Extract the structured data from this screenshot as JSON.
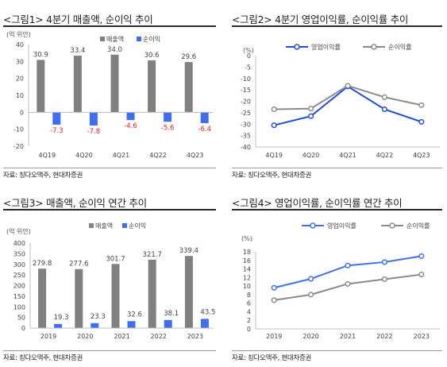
{
  "chart_data": [
    {
      "type": "bar",
      "title": "<그림1> 4분기 매출액, 순이익 추이",
      "unit_label": "(억 위안)",
      "categories": [
        "4Q19",
        "4Q20",
        "4Q21",
        "4Q22",
        "4Q23"
      ],
      "series": [
        {
          "name": "매출액",
          "values": [
            30.9,
            33.4,
            34.0,
            30.6,
            29.6
          ],
          "color": "#808080"
        },
        {
          "name": "순이익",
          "values": [
            -7.3,
            -7.8,
            -4.6,
            -5.6,
            -6.4
          ],
          "color": "#3f6ff0"
        }
      ],
      "value_labels": [
        [
          "30.9",
          "33.4",
          "34.0",
          "30.6",
          "29.6"
        ],
        [
          "-7.3",
          "-7.8",
          "-4.6",
          "-5.6",
          "-6.4"
        ]
      ],
      "negative_label_color": "#e8201c",
      "ylim": [
        -20,
        40
      ],
      "yticks": [
        -20,
        -10,
        0,
        10,
        20,
        30,
        40
      ],
      "legend": "top",
      "grid": false,
      "source": "자료: 칭다오맥주, 현대차증권"
    },
    {
      "type": "line",
      "title": "<그림2> 4분기 영업이익률, 순이익률 추이",
      "unit_label": "(%)",
      "categories": [
        "4Q19",
        "4Q20",
        "4Q21",
        "4Q22",
        "4Q23"
      ],
      "series": [
        {
          "name": "영업이익률",
          "values": [
            -30.5,
            -26.5,
            -13.5,
            -23.5,
            -29
          ],
          "color": "#1f4fd8"
        },
        {
          "name": "순이익률",
          "values": [
            -23.5,
            -23.2,
            -13.2,
            -18.2,
            -21.7
          ],
          "color": "#8a8a8a"
        }
      ],
      "ylim": [
        -40,
        0
      ],
      "yticks": [
        0,
        -5,
        -10,
        -15,
        -20,
        -25,
        -30,
        -35,
        -40
      ],
      "legend": "top",
      "grid": false,
      "source": "자료: 칭다오맥주, 현대차증권"
    },
    {
      "type": "bar",
      "title": "<그림3> 매출액, 순이익 연간 추이",
      "unit_label": "(억 위안)",
      "categories": [
        "2019",
        "2020",
        "2021",
        "2022",
        "2023"
      ],
      "series": [
        {
          "name": "매출액",
          "values": [
            279.8,
            277.6,
            301.7,
            321.7,
            339.4
          ],
          "color": "#808080"
        },
        {
          "name": "순이익",
          "values": [
            19.3,
            23.3,
            32.6,
            38.1,
            43.5
          ],
          "color": "#3f6ff0"
        }
      ],
      "value_labels": [
        [
          "279.8",
          "277.6",
          "301.7",
          "321.7",
          "339.4"
        ],
        [
          "19.3",
          "23.3",
          "32.6",
          "38.1",
          "43.5"
        ]
      ],
      "ylim": [
        0,
        400
      ],
      "yticks": [
        0,
        50,
        100,
        150,
        200,
        250,
        300,
        350,
        400
      ],
      "legend": "top",
      "grid": false,
      "source": "자료: 칭다오맥주, 현대차증권"
    },
    {
      "type": "line",
      "title": "<그림4> 영업이익률, 순이익률 연간 추이",
      "unit_label": "(%)",
      "categories": [
        "2019",
        "2020",
        "2021",
        "2022",
        "2023"
      ],
      "series": [
        {
          "name": "영업이익률",
          "values": [
            9.6,
            11.7,
            14.8,
            15.6,
            17
          ],
          "color": "#3f6ff0"
        },
        {
          "name": "순이익률",
          "values": [
            6.7,
            8,
            10.5,
            11.6,
            12.7
          ],
          "color": "#8a8a8a"
        }
      ],
      "ylim": [
        0,
        18
      ],
      "yticks": [
        0,
        2,
        4,
        6,
        8,
        10,
        12,
        14,
        16,
        18
      ],
      "legend": "top",
      "grid": false,
      "source": "자료: 칭다오맥주, 현대차증권"
    }
  ]
}
